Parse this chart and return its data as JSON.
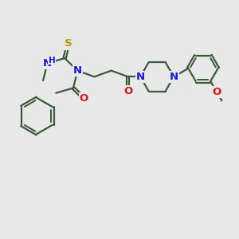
{
  "bg_color": "#e8e8e8",
  "bond_color": "#3a5a3a",
  "N_color": "#1a1acc",
  "O_color": "#cc1a1a",
  "S_color": "#b8960c",
  "line_width": 1.6,
  "dbo": 0.055,
  "font_size_atom": 9.5,
  "font_size_H": 7.5,
  "figsize": [
    3.0,
    3.0
  ],
  "dpi": 100,
  "xlim": [
    0,
    10
  ],
  "ylim": [
    0,
    10
  ]
}
